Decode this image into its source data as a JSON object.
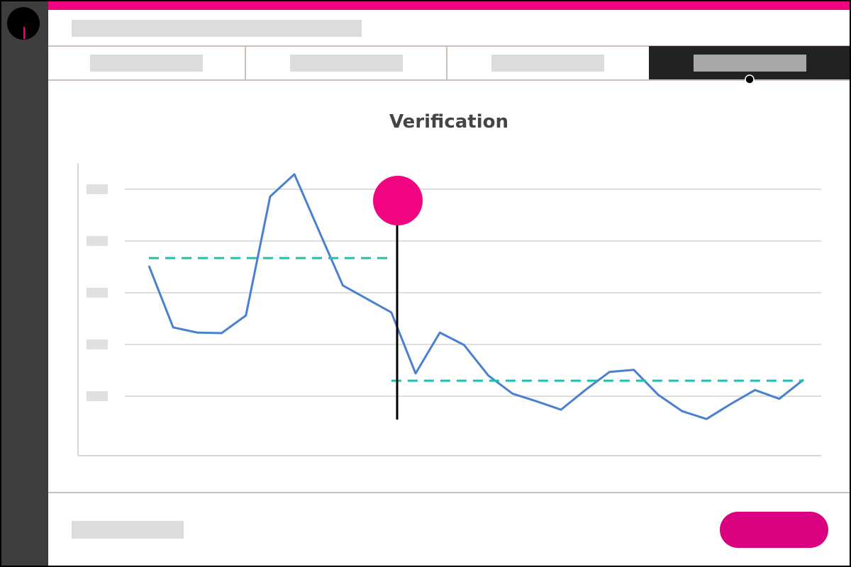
{
  "chart_data": {
    "type": "line",
    "title": "Verification",
    "ylim": [
      -0.15,
      5.5
    ],
    "yticks": [
      1,
      2,
      3,
      4,
      5
    ],
    "grid": true,
    "series": [
      {
        "color": "#4a80d2",
        "style": "solid",
        "values": [
          3.52,
          2.33,
          2.23,
          2.22,
          2.56,
          4.86,
          5.29,
          4.21,
          3.14,
          2.88,
          2.62,
          1.44,
          2.23,
          1.99,
          1.4,
          1.05,
          0.9,
          0.74,
          1.12,
          1.47,
          1.51,
          1.03,
          0.71,
          0.56,
          0.85,
          1.12,
          0.95,
          1.32
        ]
      },
      {
        "color": "#1fc0ae",
        "style": "dashed",
        "values": [
          3.67,
          3.67,
          3.67,
          3.67,
          3.67,
          3.67,
          3.67,
          3.67,
          3.67,
          3.67,
          3.67,
          null,
          null,
          null,
          null,
          null,
          null,
          null,
          null,
          null,
          null,
          null,
          null,
          null,
          null,
          null,
          null,
          null
        ]
      },
      {
        "color": "#1fc0ae",
        "style": "dashed",
        "values": [
          null,
          null,
          null,
          null,
          null,
          null,
          null,
          null,
          null,
          null,
          1.3,
          1.3,
          1.3,
          1.3,
          1.3,
          1.3,
          1.3,
          1.3,
          1.3,
          1.3,
          1.3,
          1.3,
          1.3,
          1.3,
          1.3,
          1.3,
          1.3,
          1.3
        ]
      }
    ]
  }
}
